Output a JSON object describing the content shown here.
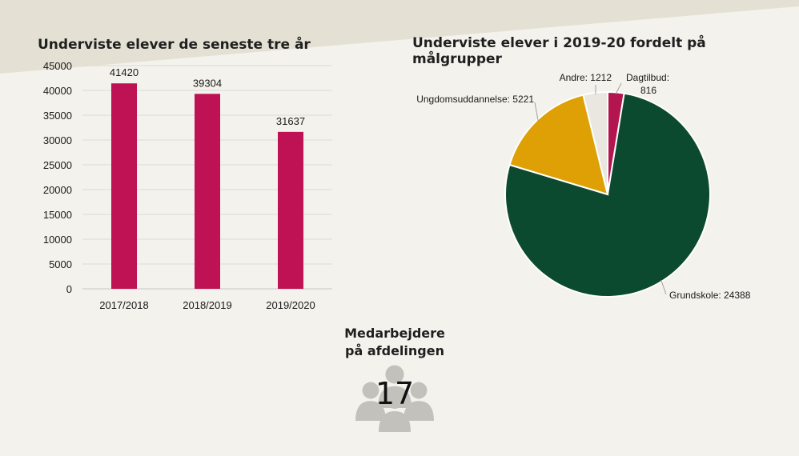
{
  "colors": {
    "background": "#f3f2ec",
    "header_band": "#e4e1d4",
    "bar": "#bf1255",
    "pie": {
      "Dagtilbud": "#b3164f",
      "Grundskole": "#0c4a2f",
      "Ungdomsuddannelse": "#dea005",
      "Andre": "#e9e7e0"
    },
    "staff_icon": "#c3c1bb"
  },
  "chart_data": [
    {
      "type": "bar",
      "title": "Underviste elever de seneste tre år",
      "categories": [
        "2017/2018",
        "2018/2019",
        "2019/2020"
      ],
      "values": [
        41420,
        39304,
        31637
      ],
      "data_labels": [
        "41420",
        "39304",
        "31637"
      ],
      "ylim": [
        0,
        45000
      ],
      "yticks": [
        0,
        5000,
        10000,
        15000,
        20000,
        25000,
        30000,
        35000,
        40000,
        45000
      ],
      "grid": true,
      "xlabel": "",
      "ylabel": ""
    },
    {
      "type": "pie",
      "title": "Underviste elever i 2019-20 fordelt på målgrupper",
      "slices": [
        {
          "label": "Dagtilbud",
          "value": 816,
          "display": "Dagtilbud:\n816"
        },
        {
          "label": "Grundskole",
          "value": 24388,
          "display": "Grundskole: 24388"
        },
        {
          "label": "Ungdomsuddannelse",
          "value": 5221,
          "display": "Ungdomsuddannelse: 5221"
        },
        {
          "label": "Andre",
          "value": 1212,
          "display": "Andre: 1212"
        }
      ]
    }
  ],
  "staff": {
    "label": "Medarbejdere på afdelingen",
    "count": "17",
    "icon": "people-group-icon"
  }
}
